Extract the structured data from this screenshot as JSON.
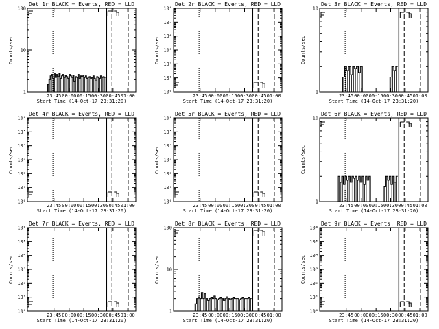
{
  "figure": {
    "xlabel": "Start Time (14-Oct-17 23:31:20)",
    "ylabel": "Counts/sec",
    "x_tick_labels": [
      "23:45",
      "00:00",
      "00:15",
      "00:30",
      "00:45",
      "01:00"
    ]
  },
  "chart_data": [
    {
      "type": "line",
      "title": "Det 1r BLACK = Events, RED = LLD",
      "yscale": "log",
      "ylim": [
        1,
        100
      ],
      "y_tick_labels": [
        "1",
        "10",
        "100"
      ],
      "series": [
        {
          "values": [
            1,
            1,
            1,
            1,
            1.5,
            2,
            2.4,
            2.6,
            2.1,
            2.7,
            2.2,
            2.6,
            2.3,
            2.8,
            2.1,
            2.4,
            2.6,
            2.2,
            2.5,
            2.3,
            2.1,
            2.6,
            2.4,
            2.2,
            2.5,
            1.8,
            2.3,
            2.2,
            2.6,
            2.1,
            2.4,
            2.3,
            2.5,
            2.2,
            2.4,
            2.1,
            2.2,
            2.3,
            2.1,
            2.2,
            2.4,
            2.1,
            1.9,
            2.3,
            2.2,
            2.1,
            2.4,
            2.2,
            2.3,
            2.2
          ]
        }
      ]
    },
    {
      "type": "line",
      "title": "Det 2r BLACK = Events, RED = LLD",
      "yscale": "log",
      "ylim": [
        1,
        1000000
      ],
      "y_tick_labels": [
        "10⁰",
        "10¹",
        "10²",
        "10³",
        "10⁴",
        "10⁵",
        "10⁶"
      ],
      "series": [
        {
          "values": []
        }
      ]
    },
    {
      "type": "line",
      "title": "Det 3r BLACK = Events, RED = LLD",
      "yscale": "log",
      "ylim": [
        1,
        10
      ],
      "y_tick_labels": [
        "1",
        "10"
      ],
      "series": [
        {
          "values": [
            1,
            1,
            1,
            1,
            1.5,
            2,
            1.8,
            2,
            1.6,
            2,
            1.9,
            2,
            1.7,
            2,
            1,
            1,
            1,
            1,
            1,
            1,
            1,
            1,
            1,
            1,
            1,
            1,
            1,
            1,
            1.5,
            2,
            1.8,
            2
          ]
        }
      ]
    },
    {
      "type": "line",
      "title": "Det 4r BLACK = Events, RED = LLD",
      "yscale": "log",
      "ylim": [
        1,
        1000000
      ],
      "y_tick_labels": [
        "10⁰",
        "10¹",
        "10²",
        "10³",
        "10⁴",
        "10⁵",
        "10⁶"
      ],
      "series": [
        {
          "values": []
        }
      ]
    },
    {
      "type": "line",
      "title": "Det 5r BLACK = Events, RED = LLD",
      "yscale": "log",
      "ylim": [
        1,
        1000000
      ],
      "y_tick_labels": [
        "10⁰",
        "10¹",
        "10²",
        "10³",
        "10⁴",
        "10⁵",
        "10⁶"
      ],
      "series": [
        {
          "values": []
        }
      ]
    },
    {
      "type": "line",
      "title": "Det 6r BLACK = Events, RED = LLD",
      "yscale": "log",
      "ylim": [
        1,
        10
      ],
      "y_tick_labels": [
        "1",
        "10"
      ],
      "series": [
        {
          "values": [
            1,
            1,
            2,
            1.7,
            2,
            1.6,
            2,
            1.8,
            2,
            1.7,
            2,
            1.9,
            2,
            1.8,
            2,
            1.7,
            2,
            1.6,
            2,
            1.8,
            2,
            1,
            1,
            1,
            1,
            1,
            1,
            1,
            1,
            1.5,
            2,
            1.8,
            2,
            1.6,
            2,
            1.7,
            2
          ]
        }
      ]
    },
    {
      "type": "line",
      "title": "Det 7r BLACK = Events, RED = LLD",
      "yscale": "log",
      "ylim": [
        1,
        1000000
      ],
      "y_tick_labels": [
        "10⁰",
        "10¹",
        "10²",
        "10³",
        "10⁴",
        "10⁵",
        "10⁶"
      ],
      "series": [
        {
          "values": []
        }
      ]
    },
    {
      "type": "line",
      "title": "Det 8r BLACK = Events, RED = LLD",
      "yscale": "log",
      "ylim": [
        1,
        100
      ],
      "y_tick_labels": [
        "1",
        "10",
        "100"
      ],
      "series": [
        {
          "values": [
            1,
            1,
            1,
            1,
            1.5,
            2,
            2.2,
            2,
            2.8,
            2,
            2.6,
            2,
            1.8,
            2,
            2.1,
            2,
            2.3,
            2,
            1.9,
            2,
            2.1,
            2,
            1.8,
            2,
            2.2,
            2,
            1.9,
            2,
            2.1,
            2,
            2,
            2,
            1.9,
            2,
            2.1,
            2,
            2,
            2,
            2.1,
            2
          ]
        }
      ]
    },
    {
      "type": "line",
      "title": "Det 9r BLACK = Events, RED = LLD",
      "yscale": "log",
      "ylim": [
        1,
        1000000
      ],
      "y_tick_labels": [
        "10⁰",
        "10¹",
        "10²",
        "10³",
        "10⁴",
        "10⁵",
        "10⁶"
      ],
      "series": [
        {
          "values": []
        }
      ]
    }
  ]
}
